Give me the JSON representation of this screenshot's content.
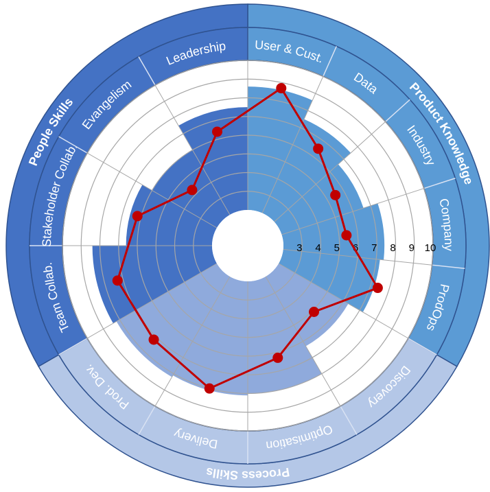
{
  "chart_data": {
    "type": "polar_bar",
    "ylim": [
      2,
      10
    ],
    "yticks": [
      3,
      4,
      5,
      6,
      7,
      8,
      9,
      10
    ],
    "line_color": "#c00000",
    "groups": [
      {
        "label": "Product Knowledge",
        "color": "#5b9bd5",
        "bar_color": "#5b9bd5",
        "categories": [
          "User & Cust.",
          "Data",
          "Industry",
          "Company",
          "ProdOps"
        ],
        "values": [
          8.6,
          7.5,
          6.6,
          7.4,
          7.2
        ],
        "line_values": [
          8.7,
          6.5,
          5.5,
          5.4,
          7.4
        ]
      },
      {
        "label": "Process Skills",
        "color": "#b4c7e7",
        "bar_color": "#8faadc",
        "categories": [
          "Discovery",
          "Optimisation",
          "Delivery",
          "Prod. Dev."
        ],
        "values": [
          6.3,
          8.0,
          8.1,
          8.2
        ],
        "line_values": [
          5.1,
          6.3,
          8.0,
          7.2
        ]
      },
      {
        "label": "People Skills",
        "color": "#4472c4",
        "bar_color": "#4472c4",
        "categories": [
          "Team Collab.",
          "Stakeholder Collab.",
          "Evangelism",
          "Leadership"
        ],
        "values": [
          8.4,
          6.6,
          6.0,
          7.5
        ],
        "line_values": [
          7.3,
          6.2,
          4.3,
          6.4
        ]
      }
    ]
  }
}
